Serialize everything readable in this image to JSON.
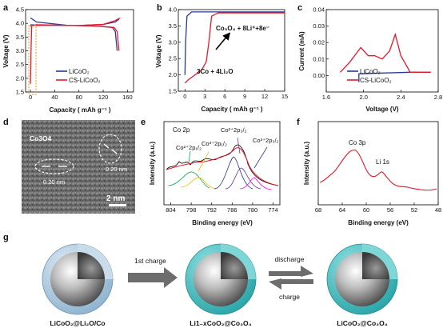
{
  "panel_labels": {
    "a": "a",
    "b": "b",
    "c": "c",
    "d": "d",
    "e": "e",
    "f": "f",
    "g": "g"
  },
  "colors": {
    "licoo2": "#2b3990",
    "cs_licoo2": "#e8192c",
    "orange_box": "#f7931e",
    "shell_blue": "#a9c6dc",
    "shell_teal": "#4fc3c3",
    "arrow_gray": "#6d6d6d"
  },
  "chart_data": [
    {
      "panel": "a",
      "type": "line",
      "xlabel": "Capacity ( mAh g⁻¹ )",
      "ylabel": "Voltage (V)",
      "xlim": [
        -8,
        170
      ],
      "ylim": [
        1.5,
        4.5
      ],
      "xticks": [
        "0",
        "40",
        "80",
        "120",
        "160"
      ],
      "yticks": [
        "1.5",
        "2.0",
        "2.5",
        "3.0",
        "3.5",
        "4.0",
        "4.5"
      ],
      "series": [
        {
          "name": "LiCoO₂",
          "color": "#2b3990",
          "charge": [
            [
              0,
              3.95
            ],
            [
              5,
              3.94
            ],
            [
              40,
              3.93
            ],
            [
              80,
              3.92
            ],
            [
              120,
              3.96
            ],
            [
              140,
              4.05
            ],
            [
              146,
              4.15
            ]
          ],
          "discharge": [
            [
              0,
              4.2
            ],
            [
              10,
              4.05
            ],
            [
              60,
              3.93
            ],
            [
              110,
              3.9
            ],
            [
              135,
              3.85
            ],
            [
              140,
              3.7
            ],
            [
              143,
              3.0
            ]
          ]
        },
        {
          "name": "CS-LiCoO₂",
          "color": "#e8192c",
          "charge": [
            [
              0,
              1.8
            ],
            [
              1,
              3.0
            ],
            [
              2,
              3.9
            ],
            [
              5,
              3.92
            ],
            [
              40,
              3.93
            ],
            [
              80,
              3.92
            ],
            [
              120,
              3.96
            ],
            [
              140,
              4.1
            ],
            [
              148,
              4.2
            ]
          ],
          "discharge": [
            [
              0,
              3.9
            ],
            [
              10,
              3.95
            ],
            [
              60,
              3.93
            ],
            [
              110,
              3.9
            ],
            [
              138,
              3.85
            ],
            [
              143,
              3.7
            ],
            [
              146,
              3.0
            ]
          ]
        }
      ]
    },
    {
      "panel": "b",
      "type": "line",
      "xlabel": "Capacity ( mAh g⁻¹ )",
      "ylabel": "Voltage (V)",
      "xlim": [
        -1,
        15
      ],
      "ylim": [
        1.5,
        4.0
      ],
      "xticks": [
        "0",
        "3",
        "6",
        "9",
        "12",
        "15"
      ],
      "yticks": [
        "1.5",
        "2.0",
        "2.5",
        "3.0",
        "3.5",
        "4.0"
      ],
      "series": [
        {
          "name": "LiCoO₂",
          "color": "#2b3990",
          "points": [
            [
              0,
              2.0
            ],
            [
              0.1,
              3.0
            ],
            [
              0.3,
              3.8
            ],
            [
              1,
              3.93
            ],
            [
              15,
              3.93
            ]
          ]
        },
        {
          "name": "CS-LiCoO₂",
          "color": "#e8192c",
          "points": [
            [
              0,
              1.75
            ],
            [
              0.5,
              1.85
            ],
            [
              1.5,
              2.0
            ],
            [
              2.5,
              2.15
            ],
            [
              3.2,
              2.4
            ],
            [
              3.6,
              3.0
            ],
            [
              4,
              3.8
            ],
            [
              5,
              3.9
            ],
            [
              15,
              3.9
            ]
          ]
        }
      ],
      "annotations": [
        "Co₃O₄ + 8Li⁺+8e⁻",
        "3Co + 4Li₂O"
      ]
    },
    {
      "panel": "c",
      "type": "line",
      "xlabel": "Voltage (V)",
      "ylabel": "Current (mA)",
      "xlim": [
        1.6,
        2.8
      ],
      "ylim": [
        -0.01,
        0.04
      ],
      "xticks": [
        "1.6",
        "2.0",
        "2.4",
        "2.8"
      ],
      "yticks": [
        "0.00",
        "0.01",
        "0.02",
        "0.03",
        "0.04"
      ],
      "series": [
        {
          "name": "LiCoO₂",
          "color": "#2b3990",
          "points": [
            [
              1.95,
              -0.004
            ],
            [
              1.95,
              0.001
            ],
            [
              2.2,
              0.0015
            ],
            [
              2.5,
              0.002
            ],
            [
              2.72,
              0.002
            ]
          ]
        },
        {
          "name": "CS-LiCoO₂",
          "color": "#e8192c",
          "points": [
            [
              1.75,
              0.002
            ],
            [
              1.85,
              0.008
            ],
            [
              1.97,
              0.017
            ],
            [
              2.05,
              0.012
            ],
            [
              2.12,
              0.012
            ],
            [
              2.2,
              0.01
            ],
            [
              2.28,
              0.015
            ],
            [
              2.34,
              0.025
            ],
            [
              2.4,
              0.012
            ],
            [
              2.5,
              0.002
            ],
            [
              2.72,
              0.002
            ]
          ]
        }
      ]
    },
    {
      "panel": "e",
      "type": "line",
      "xlabel": "Binding energy (eV)",
      "ylabel": "Intensity (a.u.)",
      "xlim": [
        806,
        772
      ],
      "xticks": [
        "804",
        "798",
        "792",
        "786",
        "780",
        "774"
      ],
      "title": "Co 2p",
      "peaks": [
        "Co²⁺2p₁/₂",
        "Co³⁺2p₁/₂",
        "Co²⁺2p₃/₂",
        "Co³⁺2p₃/₂"
      ]
    },
    {
      "panel": "f",
      "type": "line",
      "xlabel": "Binding energy (eV)",
      "ylabel": "Intensity (a.u.)",
      "xlim": [
        68,
        48
      ],
      "xticks": [
        "68",
        "64",
        "60",
        "56",
        "52",
        "48"
      ],
      "peaks": [
        "Co 3p",
        "Li 1s"
      ]
    }
  ],
  "panel_a": {
    "legend": [
      "LiCoO₂",
      "CS-LiCoO₂"
    ]
  },
  "panel_c": {
    "legend": [
      "LiCoO₂",
      "CS-LiCoO₂"
    ]
  },
  "panel_d": {
    "label": "Co3O4",
    "spacing1": "0.20 nm",
    "spacing2": "0.20 nm",
    "scale": "2 nm"
  },
  "panel_g": {
    "step1": "1st charge",
    "step2": "discharge",
    "step3": "charge",
    "sphere1": "LiCoO₂@Li₂O/Co",
    "sphere2": "Li1₋xCoO₂@Co₃O₄",
    "sphere3": "LiCoO₂@Co₃O₄"
  }
}
